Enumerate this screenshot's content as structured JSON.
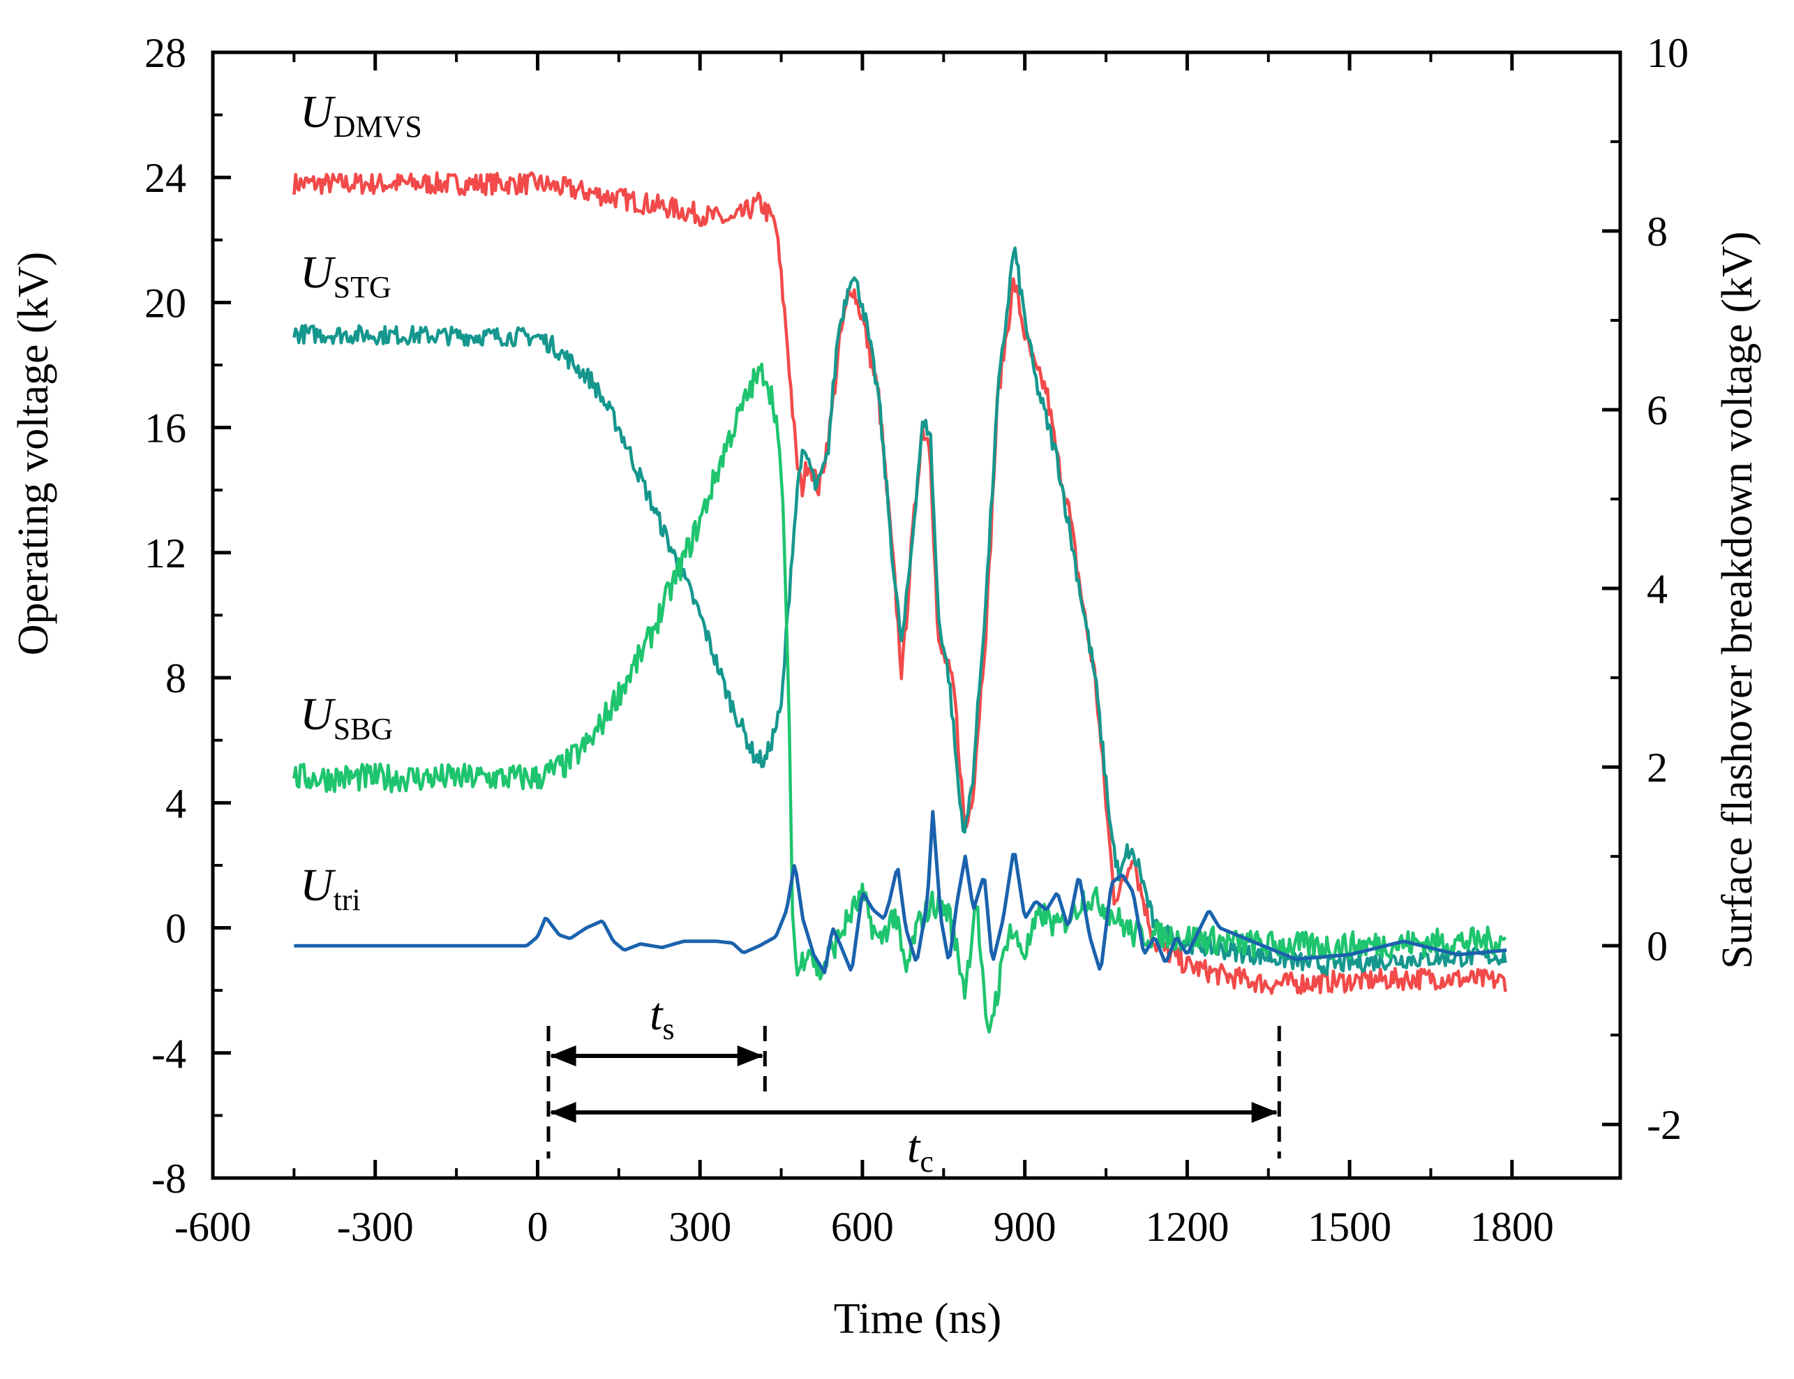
{
  "chart_data": {
    "type": "line",
    "title": "",
    "xlabel": "Time (ns)",
    "ylabel_left": "Operating voltage (kV)",
    "ylabel_right": "Surface flashover breakdown voltage (kV)",
    "xlim": [
      -600,
      2000
    ],
    "ylim_left": [
      -8,
      28
    ],
    "ylim_right": [
      -2.6,
      10
    ],
    "x_ticks": [
      -600,
      -300,
      0,
      300,
      600,
      900,
      1200,
      1500,
      1800
    ],
    "y_left_ticks": [
      -8,
      -4,
      0,
      4,
      8,
      12,
      16,
      20,
      24,
      28
    ],
    "y_right_ticks": [
      -2,
      0,
      2,
      4,
      6,
      8,
      10
    ],
    "grid": false,
    "series": [
      {
        "name": "U_DMVS",
        "label_main": "U",
        "label_sub": "DMVS",
        "axis": "left",
        "color": "#f24a4a",
        "noise": 0.35,
        "points": [
          [
            -450,
            23.8
          ],
          [
            0,
            23.8
          ],
          [
            100,
            23.5
          ],
          [
            250,
            23.0
          ],
          [
            360,
            22.6
          ],
          [
            410,
            23.2
          ],
          [
            440,
            22.5
          ],
          [
            460,
            19
          ],
          [
            478,
            15
          ],
          [
            488,
            14
          ],
          [
            500,
            15
          ],
          [
            520,
            14
          ],
          [
            540,
            16
          ],
          [
            560,
            19
          ],
          [
            580,
            20.6
          ],
          [
            600,
            19.5
          ],
          [
            630,
            17
          ],
          [
            660,
            11
          ],
          [
            673,
            8
          ],
          [
            690,
            12
          ],
          [
            710,
            16
          ],
          [
            725,
            15.5
          ],
          [
            740,
            9
          ],
          [
            755,
            8.5
          ],
          [
            770,
            7.5
          ],
          [
            790,
            3
          ],
          [
            805,
            4.5
          ],
          [
            830,
            10
          ],
          [
            850,
            17
          ],
          [
            880,
            20.7
          ],
          [
            900,
            19
          ],
          [
            920,
            17.8
          ],
          [
            940,
            17.2
          ],
          [
            960,
            15
          ],
          [
            980,
            13.5
          ],
          [
            1010,
            10
          ],
          [
            1030,
            8
          ],
          [
            1050,
            4
          ],
          [
            1065,
            1
          ],
          [
            1085,
            1.5
          ],
          [
            1100,
            2.5
          ],
          [
            1110,
            1.5
          ],
          [
            1140,
            -0.5
          ],
          [
            1200,
            -1.2
          ],
          [
            1260,
            -1.5
          ],
          [
            1350,
            -1.8
          ],
          [
            1500,
            -1.7
          ],
          [
            1650,
            -1.6
          ],
          [
            1790,
            -1.7
          ]
        ]
      },
      {
        "name": "U_STG",
        "label_main": "U",
        "label_sub": "STG",
        "axis": "left",
        "color": "#16978e",
        "noise": 0.3,
        "points": [
          [
            -450,
            19
          ],
          [
            0,
            18.9
          ],
          [
            30,
            18.6
          ],
          [
            100,
            17.5
          ],
          [
            150,
            16
          ],
          [
            200,
            14
          ],
          [
            250,
            12
          ],
          [
            300,
            10
          ],
          [
            350,
            7.5
          ],
          [
            400,
            5.5
          ],
          [
            420,
            5.3
          ],
          [
            450,
            7
          ],
          [
            470,
            12
          ],
          [
            485,
            15
          ],
          [
            500,
            15
          ],
          [
            515,
            14
          ],
          [
            535,
            15
          ],
          [
            555,
            19
          ],
          [
            580,
            21
          ],
          [
            600,
            20
          ],
          [
            630,
            17
          ],
          [
            660,
            11
          ],
          [
            673,
            9
          ],
          [
            690,
            12
          ],
          [
            710,
            16
          ],
          [
            725,
            16
          ],
          [
            740,
            10
          ],
          [
            760,
            8
          ],
          [
            780,
            4
          ],
          [
            790,
            3
          ],
          [
            805,
            5
          ],
          [
            830,
            11
          ],
          [
            850,
            17
          ],
          [
            880,
            21.8
          ],
          [
            900,
            19.5
          ],
          [
            920,
            17.5
          ],
          [
            960,
            15
          ],
          [
            1000,
            11
          ],
          [
            1030,
            8
          ],
          [
            1060,
            3
          ],
          [
            1075,
            1.5
          ],
          [
            1090,
            2.5
          ],
          [
            1110,
            2
          ],
          [
            1140,
            0
          ],
          [
            1200,
            -0.5
          ],
          [
            1300,
            -0.8
          ],
          [
            1450,
            -1.2
          ],
          [
            1600,
            -1.0
          ],
          [
            1790,
            -0.9
          ]
        ]
      },
      {
        "name": "U_SBG",
        "label_main": "U",
        "label_sub": "SBG",
        "axis": "left",
        "color": "#1ec46e",
        "noise": 0.45,
        "points": [
          [
            -450,
            4.8
          ],
          [
            0,
            4.8
          ],
          [
            50,
            5.2
          ],
          [
            100,
            6
          ],
          [
            150,
            7.5
          ],
          [
            200,
            9
          ],
          [
            250,
            11
          ],
          [
            300,
            13
          ],
          [
            350,
            15.5
          ],
          [
            400,
            17.5
          ],
          [
            420,
            17.8
          ],
          [
            440,
            16.5
          ],
          [
            455,
            13
          ],
          [
            465,
            6
          ],
          [
            472,
            0
          ],
          [
            480,
            -1.5
          ],
          [
            500,
            -0.5
          ],
          [
            520,
            -1.5
          ],
          [
            550,
            -0.5
          ],
          [
            580,
            0.5
          ],
          [
            600,
            1
          ],
          [
            630,
            -0.5
          ],
          [
            660,
            0.5
          ],
          [
            680,
            -1.5
          ],
          [
            700,
            0
          ],
          [
            730,
            0.8
          ],
          [
            760,
            0.5
          ],
          [
            790,
            -2
          ],
          [
            810,
            1
          ],
          [
            830,
            -3.5
          ],
          [
            850,
            -2
          ],
          [
            870,
            0
          ],
          [
            900,
            -0.8
          ],
          [
            930,
            0.5
          ],
          [
            960,
            0
          ],
          [
            990,
            0.5
          ],
          [
            1010,
            1
          ],
          [
            1040,
            0.8
          ],
          [
            1100,
            -0.2
          ],
          [
            1200,
            -0.3
          ],
          [
            1300,
            -0.5
          ],
          [
            1450,
            -0.6
          ],
          [
            1600,
            -0.5
          ],
          [
            1790,
            -0.4
          ]
        ]
      },
      {
        "name": "U_tri",
        "label_main": "U",
        "label_sub": "tri",
        "axis": "right",
        "color": "#1a62ad",
        "noise": 0,
        "points": [
          [
            -450,
            0
          ],
          [
            -50,
            0
          ],
          [
            -20,
            0
          ],
          [
            0,
            0.1
          ],
          [
            15,
            0.32
          ],
          [
            40,
            0.12
          ],
          [
            60,
            0.08
          ],
          [
            90,
            0.2
          ],
          [
            120,
            0.28
          ],
          [
            140,
            0.05
          ],
          [
            160,
            -0.05
          ],
          [
            190,
            0.02
          ],
          [
            230,
            -0.02
          ],
          [
            270,
            0.05
          ],
          [
            330,
            0.05
          ],
          [
            360,
            0.03
          ],
          [
            380,
            -0.08
          ],
          [
            410,
            0
          ],
          [
            440,
            0.1
          ],
          [
            460,
            0.4
          ],
          [
            475,
            0.93
          ],
          [
            490,
            0.3
          ],
          [
            510,
            -0.1
          ],
          [
            530,
            -0.3
          ],
          [
            545,
            0.2
          ],
          [
            560,
            0
          ],
          [
            580,
            -0.3
          ],
          [
            600,
            0.6
          ],
          [
            620,
            0.4
          ],
          [
            640,
            0.3
          ],
          [
            650,
            0.5
          ],
          [
            665,
            0.9
          ],
          [
            680,
            0.2
          ],
          [
            700,
            -0.2
          ],
          [
            720,
            0.5
          ],
          [
            730,
            1.5
          ],
          [
            745,
            0.3
          ],
          [
            760,
            -0.2
          ],
          [
            775,
            0.5
          ],
          [
            790,
            1
          ],
          [
            805,
            0.4
          ],
          [
            825,
            0.8
          ],
          [
            840,
            -0.2
          ],
          [
            860,
            0.3
          ],
          [
            880,
            1.1
          ],
          [
            900,
            0.3
          ],
          [
            920,
            0.5
          ],
          [
            940,
            0.4
          ],
          [
            960,
            0.6
          ],
          [
            980,
            0.2
          ],
          [
            1000,
            0.8
          ],
          [
            1020,
            0.1
          ],
          [
            1040,
            -0.3
          ],
          [
            1060,
            0.7
          ],
          [
            1080,
            0.8
          ],
          [
            1100,
            0.6
          ],
          [
            1120,
            -0.1
          ],
          [
            1140,
            0.1
          ],
          [
            1160,
            -0.2
          ],
          [
            1180,
            0.1
          ],
          [
            1200,
            -0.1
          ],
          [
            1240,
            0.4
          ],
          [
            1260,
            0.2
          ],
          [
            1300,
            0.1
          ],
          [
            1360,
            -0.05
          ],
          [
            1400,
            -0.15
          ],
          [
            1500,
            -0.1
          ],
          [
            1600,
            0.05
          ],
          [
            1700,
            -0.1
          ],
          [
            1790,
            -0.05
          ]
        ]
      }
    ],
    "annotations": [
      {
        "name": "t_s",
        "main": "t",
        "sub": "s",
        "x_start": 20,
        "x_end": 420
      },
      {
        "name": "t_c",
        "main": "t",
        "sub": "c",
        "x_start": 20,
        "x_end": 1370
      }
    ]
  }
}
